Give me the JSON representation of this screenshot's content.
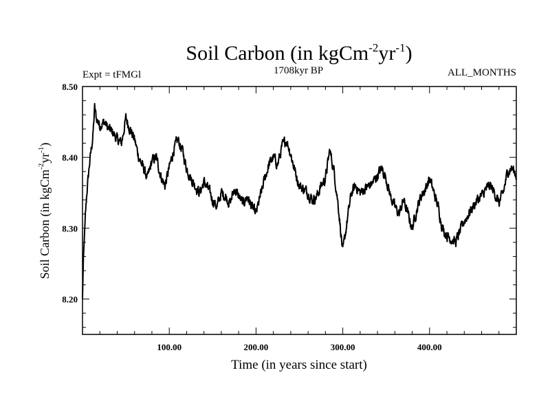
{
  "chart_data": {
    "type": "line",
    "title_main": "Soil Carbon (in kgCm",
    "title_sup1": "-2",
    "title_mid": "yr",
    "title_sup2": "-1",
    "title_end": ")",
    "subtitle_left": "Expt = tFMGl",
    "subtitle_center": "1708kyr BP",
    "subtitle_right": "ALL_MONTHS",
    "xlabel": "Time (in years since start)",
    "ylabel_main": "Soil Carbon (in kgCm",
    "ylabel_sup1": "-2",
    "ylabel_mid": "yr",
    "ylabel_sup2": "-1",
    "ylabel_end": ")",
    "xlim": [
      0,
      500
    ],
    "ylim": [
      8.15,
      8.5
    ],
    "xticks": [
      100,
      200,
      300,
      400
    ],
    "xtick_labels": [
      "100.00",
      "200.00",
      "300.00",
      "400.00"
    ],
    "yticks": [
      8.2,
      8.3,
      8.4,
      8.5
    ],
    "ytick_labels": [
      "8.20",
      "8.30",
      "8.40",
      "8.50"
    ],
    "series": [
      {
        "name": "Soil Carbon",
        "anchor_x": [
          0,
          1,
          3,
          5,
          8,
          12,
          14,
          16,
          20,
          25,
          30,
          35,
          40,
          45,
          50,
          55,
          60,
          65,
          70,
          75,
          80,
          85,
          90,
          95,
          100,
          105,
          110,
          115,
          120,
          125,
          130,
          135,
          140,
          145,
          150,
          155,
          160,
          165,
          170,
          175,
          180,
          185,
          190,
          195,
          200,
          205,
          210,
          215,
          220,
          225,
          230,
          235,
          240,
          245,
          250,
          255,
          260,
          265,
          270,
          275,
          280,
          285,
          290,
          295,
          300,
          305,
          310,
          315,
          320,
          325,
          330,
          335,
          340,
          345,
          350,
          355,
          360,
          365,
          370,
          375,
          380,
          385,
          390,
          395,
          400,
          405,
          410,
          415,
          420,
          425,
          430,
          435,
          440,
          445,
          450,
          455,
          460,
          465,
          470,
          475,
          480,
          485,
          490,
          495,
          500
        ],
        "anchor_y": [
          8.2,
          8.255,
          8.31,
          8.35,
          8.39,
          8.43,
          8.47,
          8.455,
          8.445,
          8.45,
          8.44,
          8.435,
          8.425,
          8.42,
          8.455,
          8.44,
          8.425,
          8.4,
          8.385,
          8.37,
          8.395,
          8.4,
          8.375,
          8.36,
          8.385,
          8.41,
          8.425,
          8.41,
          8.385,
          8.37,
          8.36,
          8.35,
          8.365,
          8.355,
          8.34,
          8.33,
          8.35,
          8.345,
          8.335,
          8.355,
          8.345,
          8.335,
          8.345,
          8.33,
          8.32,
          8.345,
          8.37,
          8.39,
          8.4,
          8.39,
          8.415,
          8.425,
          8.405,
          8.38,
          8.36,
          8.355,
          8.35,
          8.34,
          8.345,
          8.36,
          8.37,
          8.41,
          8.38,
          8.33,
          8.265,
          8.31,
          8.35,
          8.36,
          8.35,
          8.355,
          8.36,
          8.365,
          8.375,
          8.385,
          8.37,
          8.345,
          8.33,
          8.32,
          8.34,
          8.32,
          8.3,
          8.325,
          8.345,
          8.355,
          8.37,
          8.35,
          8.33,
          8.3,
          8.29,
          8.285,
          8.28,
          8.295,
          8.31,
          8.32,
          8.33,
          8.34,
          8.345,
          8.355,
          8.36,
          8.35,
          8.335,
          8.35,
          8.38,
          8.385,
          8.375
        ]
      }
    ]
  }
}
